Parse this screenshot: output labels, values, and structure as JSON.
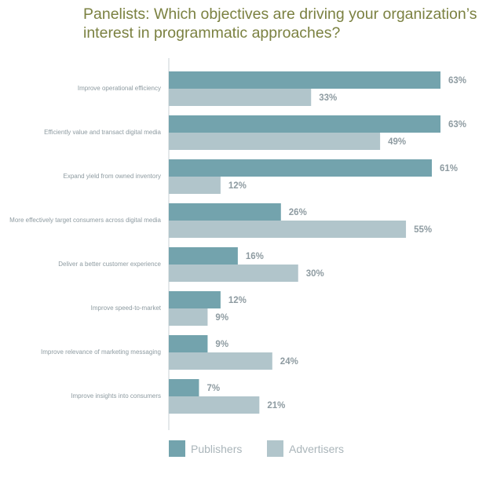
{
  "chart_data": {
    "type": "bar",
    "orientation": "horizontal",
    "title": "Panelists: Which objectives are driving your organization’s interest in programmatic approaches?",
    "categories": [
      "Improve operational efficiency",
      "Efficiently value and transact digital media",
      "Expand yield from owned inventory",
      "More effectively target consumers across digital media",
      "Deliver a better customer experience",
      "Improve speed-to-market",
      "Improve relevance of marketing messaging",
      "Improve insights into consumers"
    ],
    "series": [
      {
        "name": "Publishers",
        "values": [
          63,
          63,
          61,
          26,
          16,
          12,
          9,
          7
        ],
        "value_labels": [
          "63%",
          "63%",
          "61%",
          "26%",
          "16%",
          "12%",
          "9%",
          "7%"
        ],
        "color": "#73a3ad"
      },
      {
        "name": "Advertisers",
        "values": [
          33,
          49,
          12,
          55,
          30,
          9,
          24,
          21
        ],
        "value_labels": [
          "33%",
          "49%",
          "12%",
          "55%",
          "30%",
          "9%",
          "24%",
          "21%"
        ],
        "color": "#b1c5cb"
      }
    ],
    "xlim": [
      0,
      63
    ],
    "grid": false,
    "legend_position": "bottom-left"
  }
}
